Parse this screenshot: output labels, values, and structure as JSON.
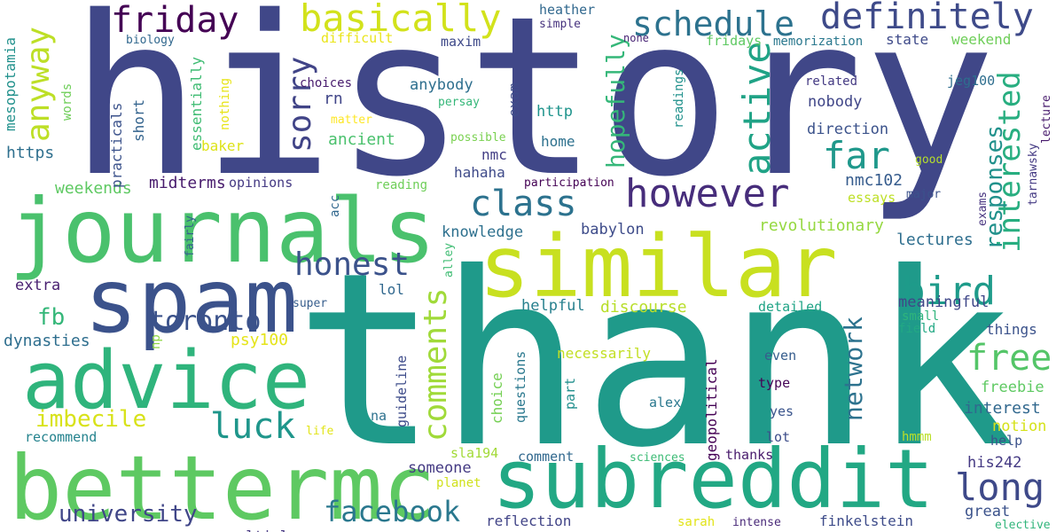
{
  "words": [
    {
      "text": "history",
      "color": "#404788"
    },
    {
      "text": "thank",
      "color": "#1f9a8a"
    },
    {
      "text": "journals",
      "color": "#4ac16d"
    },
    {
      "text": "similar",
      "color": "#c8e020"
    },
    {
      "text": "spam",
      "color": "#3b528b"
    },
    {
      "text": "advice",
      "color": "#2fb47c"
    },
    {
      "text": "bettermc",
      "color": "#5ec962"
    },
    {
      "text": "subreddit",
      "color": "#22a884"
    },
    {
      "text": "however",
      "color": "#472d7b"
    },
    {
      "text": "friday",
      "color": "#440154"
    },
    {
      "text": "basically",
      "color": "#d2e21b"
    },
    {
      "text": "schedule",
      "color": "#2c728e"
    },
    {
      "text": "definitely",
      "color": "#3e4a89"
    },
    {
      "text": "anyway",
      "color": "#bddf26"
    },
    {
      "text": "sorry",
      "color": "#414487"
    },
    {
      "text": "class",
      "color": "#2c728e"
    },
    {
      "text": "far",
      "color": "#1f988b"
    },
    {
      "text": "active",
      "color": "#20a386"
    },
    {
      "text": "hopefully",
      "color": "#35b779"
    },
    {
      "text": "interested",
      "color": "#28ae80"
    },
    {
      "text": "responses",
      "color": "#21918c"
    },
    {
      "text": "bird",
      "color": "#1e9b8a"
    },
    {
      "text": "honest",
      "color": "#3b528b"
    },
    {
      "text": "comments",
      "color": "#a0da39"
    },
    {
      "text": "toronto",
      "color": "#3b528b"
    },
    {
      "text": "luck",
      "color": "#1f968b"
    },
    {
      "text": "imbecile",
      "color": "#d8e219"
    },
    {
      "text": "facebook",
      "color": "#2a788e"
    },
    {
      "text": "university",
      "color": "#404688"
    },
    {
      "text": "long",
      "color": "#3e4989"
    },
    {
      "text": "free",
      "color": "#54c568"
    },
    {
      "text": "network",
      "color": "#2c728e"
    },
    {
      "text": "fb",
      "color": "#35b779"
    },
    {
      "text": "weekends",
      "color": "#5ec962"
    },
    {
      "text": "midterms",
      "color": "#481b6d"
    },
    {
      "text": "opinions",
      "color": "#443983"
    },
    {
      "text": "mesopotamia",
      "color": "#21918c"
    },
    {
      "text": "practicals",
      "color": "#3b528b"
    },
    {
      "text": "essentially",
      "color": "#3fbc73"
    },
    {
      "text": "nothing",
      "color": "#e7e419"
    },
    {
      "text": "words",
      "color": "#6ece58"
    },
    {
      "text": "short",
      "color": "#33638d"
    },
    {
      "text": "baker",
      "color": "#dde318"
    },
    {
      "text": "https",
      "color": "#2e6f8e"
    },
    {
      "text": "biology",
      "color": "#31688e"
    },
    {
      "text": "difficult",
      "color": "#eae51a"
    },
    {
      "text": "maxim",
      "color": "#3e4989"
    },
    {
      "text": "heather",
      "color": "#31688e"
    },
    {
      "text": "simple",
      "color": "#46327e"
    },
    {
      "text": "none",
      "color": "#482475"
    },
    {
      "text": "fridays",
      "color": "#5ec962"
    },
    {
      "text": "memorization",
      "color": "#2a788e"
    },
    {
      "text": "state",
      "color": "#3e4a89"
    },
    {
      "text": "weekend",
      "color": "#6ece58"
    },
    {
      "text": "jeg100",
      "color": "#2e6e8e"
    },
    {
      "text": "choices",
      "color": "#481c6e"
    },
    {
      "text": "rn",
      "color": "#404588"
    },
    {
      "text": "anybody",
      "color": "#2e6f8e"
    },
    {
      "text": "exam",
      "color": "#3e4c8a"
    },
    {
      "text": "http",
      "color": "#1f948c"
    },
    {
      "text": "matter",
      "color": "#fde725"
    },
    {
      "text": "persay",
      "color": "#35b779"
    },
    {
      "text": "readings",
      "color": "#21918c"
    },
    {
      "text": "related",
      "color": "#443a83"
    },
    {
      "text": "lecture",
      "color": "#481b6d"
    },
    {
      "text": "nobody",
      "color": "#404688"
    },
    {
      "text": "direction",
      "color": "#3b528b"
    },
    {
      "text": "possible",
      "color": "#7ad151"
    },
    {
      "text": "ancient",
      "color": "#4ac16d"
    },
    {
      "text": "home",
      "color": "#2d718e"
    },
    {
      "text": "nmc",
      "color": "#433e85"
    },
    {
      "text": "hahaha",
      "color": "#3e4a89"
    },
    {
      "text": "nmc102",
      "color": "#365c8d"
    },
    {
      "text": "good",
      "color": "#b5de2b"
    },
    {
      "text": "tarnawsky",
      "color": "#443a83"
    },
    {
      "text": "participation",
      "color": "#440154"
    },
    {
      "text": "exams",
      "color": "#46337f"
    },
    {
      "text": "essays",
      "color": "#bddf26"
    },
    {
      "text": "major",
      "color": "#3b528b"
    },
    {
      "text": "reading",
      "color": "#6ece58"
    },
    {
      "text": "acc",
      "color": "#31688e"
    },
    {
      "text": "knowledge",
      "color": "#2d708e"
    },
    {
      "text": "babylon",
      "color": "#3e4c8a"
    },
    {
      "text": "revolutionary",
      "color": "#95d840"
    },
    {
      "text": "lectures",
      "color": "#2e6e8e"
    },
    {
      "text": "fairly",
      "color": "#34618d"
    },
    {
      "text": "alley",
      "color": "#3fbc73"
    },
    {
      "text": "extra",
      "color": "#481f70"
    },
    {
      "text": "lol",
      "color": "#31688e"
    },
    {
      "text": "super",
      "color": "#365d8d"
    },
    {
      "text": "helpful",
      "color": "#27808e"
    },
    {
      "text": "discourse",
      "color": "#b8de29"
    },
    {
      "text": "detailed",
      "color": "#20a486"
    },
    {
      "text": "meaningful",
      "color": "#3f4788"
    },
    {
      "text": "small",
      "color": "#2fb47c"
    },
    {
      "text": "field",
      "color": "#22a884"
    },
    {
      "text": "things",
      "color": "#3b528b"
    },
    {
      "text": "dynasties",
      "color": "#2e6e8e"
    },
    {
      "text": "np",
      "color": "#8fd744"
    },
    {
      "text": "psy100",
      "color": "#e5e419"
    },
    {
      "text": "guideline",
      "color": "#3e4c8a"
    },
    {
      "text": "questions",
      "color": "#2a788e"
    },
    {
      "text": "choice",
      "color": "#75d054"
    },
    {
      "text": "part",
      "color": "#218f8d"
    },
    {
      "text": "necessarily",
      "color": "#c2df23"
    },
    {
      "text": "geopolitical",
      "color": "#440154"
    },
    {
      "text": "even",
      "color": "#365d8d"
    },
    {
      "text": "type",
      "color": "#450457"
    },
    {
      "text": "freebie",
      "color": "#5ec962"
    },
    {
      "text": "interest",
      "color": "#31688e"
    },
    {
      "text": "notion",
      "color": "#d5e21a"
    },
    {
      "text": "hmmm",
      "color": "#bade28"
    },
    {
      "text": "help",
      "color": "#3b528b"
    },
    {
      "text": "alex",
      "color": "#2a788e"
    },
    {
      "text": "yes",
      "color": "#3a548c"
    },
    {
      "text": "lot",
      "color": "#3d4d8a"
    },
    {
      "text": "his242",
      "color": "#443983"
    },
    {
      "text": "thanks",
      "color": "#481a6c"
    },
    {
      "text": "great",
      "color": "#3b528b"
    },
    {
      "text": "na",
      "color": "#2d718e"
    },
    {
      "text": "life",
      "color": "#e2e418"
    },
    {
      "text": "recommend",
      "color": "#25838e"
    },
    {
      "text": "sla194",
      "color": "#a2da37"
    },
    {
      "text": "someone",
      "color": "#443a83"
    },
    {
      "text": "comment",
      "color": "#31688e"
    },
    {
      "text": "sciences",
      "color": "#3cbb75"
    },
    {
      "text": "planet",
      "color": "#d0e11c"
    },
    {
      "text": "multiple",
      "color": "#453781"
    },
    {
      "text": "reflection",
      "color": "#414487"
    },
    {
      "text": "sarah",
      "color": "#e2e418"
    },
    {
      "text": "intense",
      "color": "#482878"
    },
    {
      "text": "finkelstein",
      "color": "#3e4c8a"
    },
    {
      "text": "elective",
      "color": "#31b57b"
    }
  ]
}
